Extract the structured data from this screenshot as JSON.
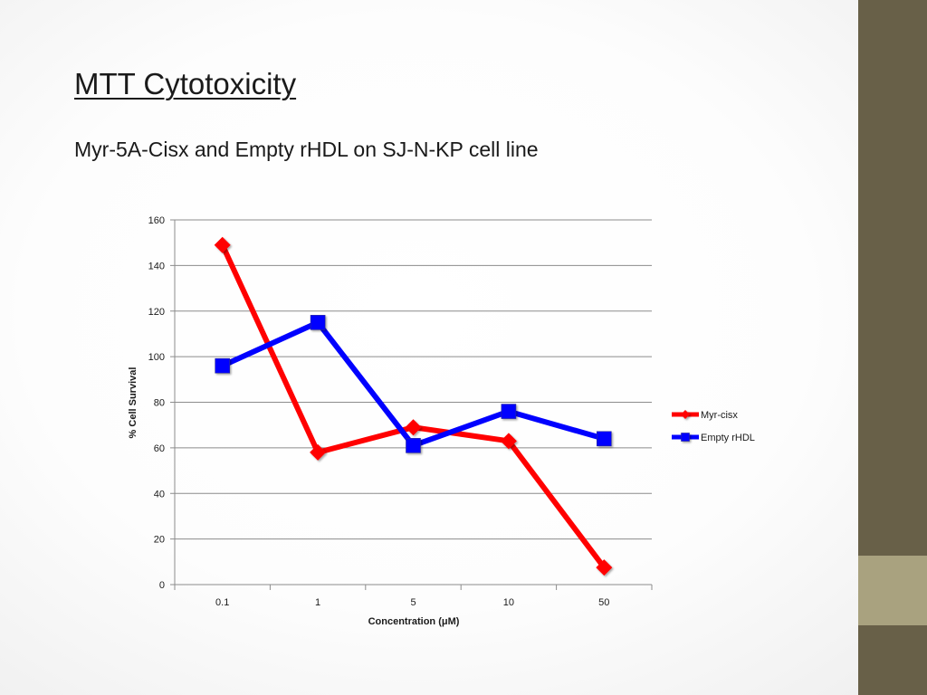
{
  "slide": {
    "title": "MTT Cytotoxicity",
    "subtitle": "Myr-5A-Cisx and Empty rHDL on SJ-N-KP cell line"
  },
  "theme": {
    "side_bar_color": "#686048",
    "side_bar_accent_color": "#a9a27f"
  },
  "chart_data": {
    "type": "line",
    "title": "",
    "categories": [
      "0.1",
      "1",
      "5",
      "10",
      "50"
    ],
    "xlabel": "Concentration (μM)",
    "ylabel": "% Cell Survival",
    "ylim": [
      0,
      160
    ],
    "yticks": [
      0,
      20,
      40,
      60,
      80,
      100,
      120,
      140,
      160
    ],
    "grid": "horizontal",
    "legend_position": "right",
    "series": [
      {
        "name": "Myr-cisx",
        "values": [
          149,
          58,
          69,
          63,
          7.5
        ],
        "color": "#ff0000",
        "marker": "diamond"
      },
      {
        "name": "Empty rHDL",
        "values": [
          96,
          115,
          61,
          76,
          64
        ],
        "color": "#0000ff",
        "marker": "square"
      }
    ]
  }
}
